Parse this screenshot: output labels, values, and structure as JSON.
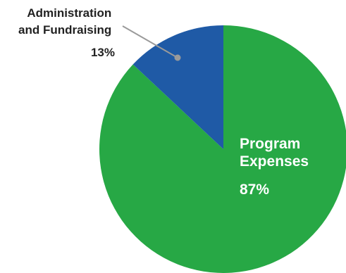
{
  "chart_data": {
    "type": "pie",
    "start_angle": "top",
    "direction": "clockwise",
    "slices": [
      {
        "label_lines": [
          "Program",
          "Expenses"
        ],
        "percent_label": "87%",
        "value": 87,
        "color": "#27a845"
      },
      {
        "label_lines": [
          "Administration",
          "and Fundraising"
        ],
        "percent_label": "13%",
        "value": 13,
        "color": "#1f5aa6"
      }
    ],
    "leader_line_color": "#9a9a9a"
  }
}
